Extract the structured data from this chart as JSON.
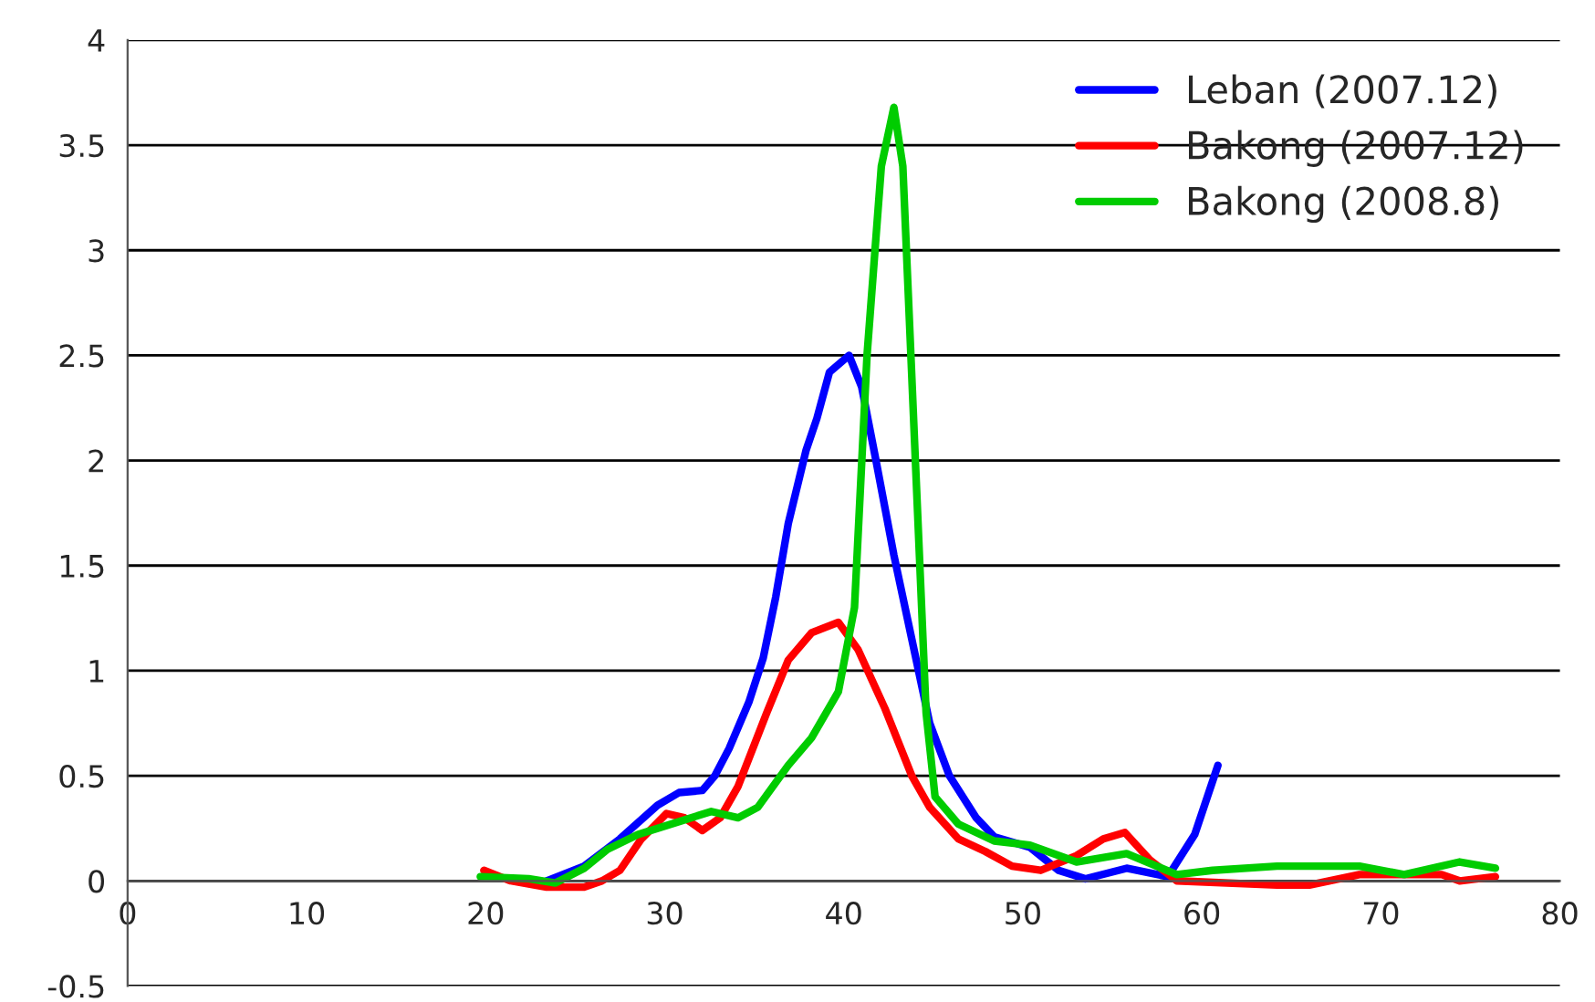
{
  "chart_data": {
    "type": "line",
    "xlim": [
      0,
      80
    ],
    "xticks": [
      0,
      10,
      20,
      30,
      40,
      50,
      60,
      70,
      80
    ],
    "ylim": [
      -0.5,
      4
    ],
    "yticks": [
      -0.5,
      0,
      0.5,
      1,
      1.5,
      2,
      2.5,
      3,
      3.5,
      4
    ],
    "grid": "y",
    "legend": "top right",
    "marker": "none",
    "line_style": "solid",
    "series": [
      {
        "name": "Leban (2007.12)",
        "color": "#0000ff",
        "x": [
          23.4,
          25.5,
          27.5,
          29.6,
          30.8,
          32.1,
          32.8,
          33.6,
          34.7,
          35.5,
          36.2,
          36.9,
          37.9,
          38.5,
          39.2,
          40.3,
          41.0,
          41.8,
          42.8,
          43.8,
          44.8,
          45.9,
          47.4,
          48.4,
          50.4,
          52.0,
          53.5,
          55.8,
          58.1,
          59.6,
          60.9
        ],
        "values": [
          0,
          0.07,
          0.2,
          0.36,
          0.42,
          0.43,
          0.5,
          0.63,
          0.85,
          1.06,
          1.35,
          1.7,
          2.05,
          2.2,
          2.42,
          2.5,
          2.35,
          2.0,
          1.55,
          1.15,
          0.75,
          0.5,
          0.3,
          0.21,
          0.16,
          0.05,
          0.01,
          0.06,
          0.02,
          0.22,
          0.55
        ]
      },
      {
        "name": "Bakong (2007.12)",
        "color": "#ff0000",
        "x": [
          19.9,
          21.4,
          23.4,
          25.5,
          26.5,
          27.5,
          28.7,
          30.1,
          31.1,
          32.1,
          33.1,
          34.1,
          35.7,
          36.9,
          38.2,
          39.7,
          40.8,
          42.3,
          43.8,
          44.8,
          46.4,
          47.9,
          49.4,
          51.0,
          53.0,
          54.5,
          55.7,
          57.1,
          58.6,
          64.2,
          66.0,
          68.8,
          73.4,
          74.4,
          76.4
        ],
        "values": [
          0.05,
          0.0,
          -0.03,
          -0.03,
          0.0,
          0.05,
          0.2,
          0.32,
          0.3,
          0.24,
          0.3,
          0.45,
          0.8,
          1.05,
          1.18,
          1.23,
          1.1,
          0.82,
          0.5,
          0.35,
          0.2,
          0.14,
          0.07,
          0.05,
          0.12,
          0.2,
          0.23,
          0.1,
          0.0,
          -0.02,
          -0.02,
          0.03,
          0.03,
          0.0,
          0.02
        ]
      },
      {
        "name": "Bakong (2008.8)",
        "color": "#00cc00",
        "x": [
          19.7,
          22.4,
          23.9,
          25.5,
          26.8,
          28.5,
          31.1,
          32.6,
          34.1,
          35.2,
          36.9,
          38.2,
          39.7,
          40.6,
          41.3,
          42.1,
          42.8,
          43.3,
          44.0,
          44.6,
          45.1,
          46.4,
          48.4,
          50.4,
          53.0,
          55.8,
          58.6,
          60.6,
          64.2,
          68.8,
          71.3,
          74.4,
          76.4
        ],
        "values": [
          0.02,
          0.01,
          -0.01,
          0.06,
          0.15,
          0.22,
          0.29,
          0.33,
          0.3,
          0.35,
          0.55,
          0.68,
          0.9,
          1.3,
          2.5,
          3.4,
          3.68,
          3.4,
          2.0,
          0.8,
          0.4,
          0.27,
          0.19,
          0.17,
          0.09,
          0.13,
          0.03,
          0.05,
          0.07,
          0.07,
          0.03,
          0.09,
          0.06
        ]
      }
    ]
  }
}
